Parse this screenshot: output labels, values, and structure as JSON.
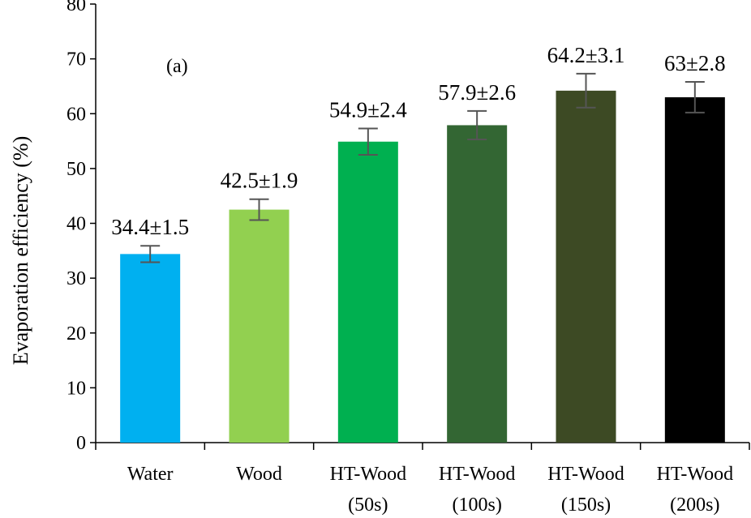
{
  "chart_data": {
    "type": "bar",
    "panel_label": "(a)",
    "ylabel": "Evaporation efficiency (%)",
    "xlabel": "",
    "ylim": [
      0,
      80
    ],
    "yticks": [
      0,
      10,
      20,
      30,
      40,
      50,
      60,
      70,
      80
    ],
    "grid": false,
    "legend": "none",
    "categories": [
      [
        "Water",
        ""
      ],
      [
        "Wood",
        ""
      ],
      [
        "HT-Wood",
        "(50s)"
      ],
      [
        "HT-Wood",
        "(100s)"
      ],
      [
        "HT-Wood",
        "(150s)"
      ],
      [
        "HT-Wood",
        "(200s)"
      ]
    ],
    "values": [
      34.4,
      42.5,
      54.9,
      57.9,
      64.2,
      63
    ],
    "errors": [
      1.5,
      1.9,
      2.4,
      2.6,
      3.1,
      2.8
    ],
    "data_labels": [
      "34.4±1.5",
      "42.5±1.9",
      "54.9±2.4",
      "57.9±2.6",
      "64.2±3.1",
      "63±2.8"
    ],
    "colors": [
      "#00b0f0",
      "#92d050",
      "#00b050",
      "#336633",
      "#3d4a24",
      "#000000"
    ],
    "error_bar_color": "#555555"
  }
}
